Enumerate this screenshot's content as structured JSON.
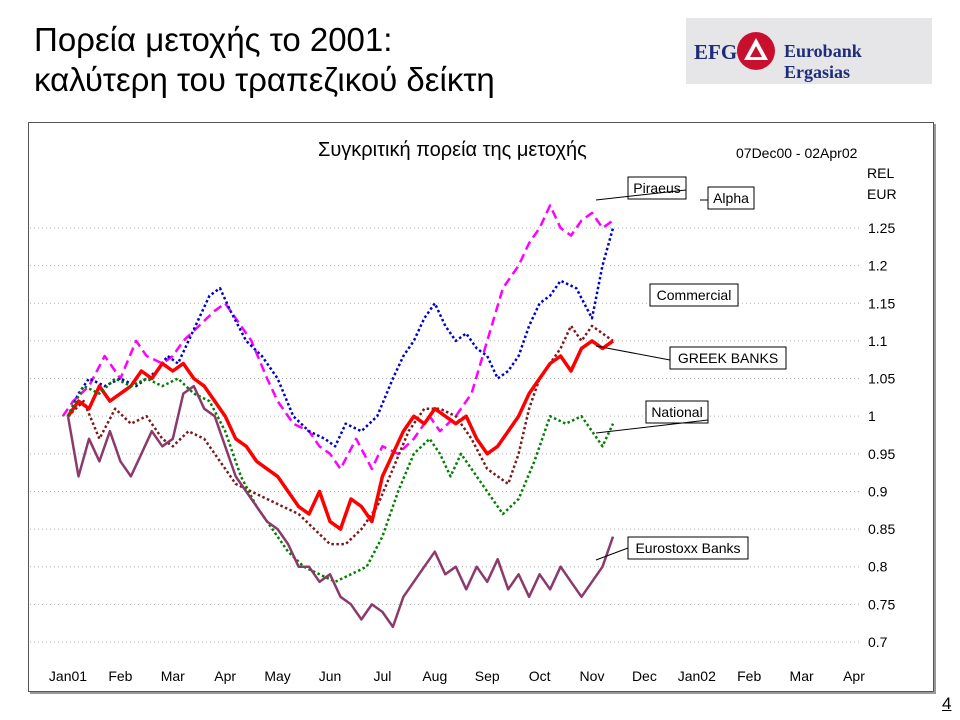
{
  "slide": {
    "title_line1": "Πορεία μετοχής το 2001:",
    "title_line2": "καλύτερη του τραπεζικού δείκτη",
    "logo_left": "EFG",
    "logo_right": "Eurobank Ergasias",
    "page_number": "4"
  },
  "chart_data": {
    "type": "line",
    "title": "Συγκριτική πορεία της μετοχής",
    "date_range": "07Dec00 - 02Apr02",
    "ylabel_line1": "REL",
    "ylabel_line2": "EUR",
    "ylim": [
      0.7,
      1.3
    ],
    "yticks": [
      "1.25",
      "1.2",
      "1.15",
      "1.1",
      "1.05",
      "1",
      "0.95",
      "0.9",
      "0.85",
      "0.8",
      "0.75",
      "0.7"
    ],
    "ytick_values": [
      1.25,
      1.2,
      1.15,
      1.1,
      1.05,
      1,
      0.95,
      0.9,
      0.85,
      0.8,
      0.75,
      0.7
    ],
    "xticks": [
      "Jan01",
      "Feb",
      "Mar",
      "Apr",
      "May",
      "Jun",
      "Jul",
      "Aug",
      "Sep",
      "Oct",
      "Nov",
      "Dec",
      "Jan02",
      "Feb",
      "Mar",
      "Apr"
    ],
    "xtick_months": [
      0,
      1,
      2,
      3,
      4,
      5,
      6,
      7,
      8,
      9,
      10,
      11,
      12,
      13,
      14,
      15
    ],
    "x_units": "months since Jan01",
    "legend_position": "labels at right end of lines",
    "grid": "dotted horizontal",
    "series": [
      {
        "name": "Piraeus",
        "color": "#ff00ff",
        "style": "dashed",
        "width": 2.5,
        "x": [
          -0.1,
          0.1,
          0.4,
          0.7,
          1.0,
          1.3,
          1.5,
          1.8,
          2.0,
          2.2,
          2.5,
          2.8,
          3.0,
          3.2,
          3.5,
          3.8,
          4.0,
          4.3,
          4.6,
          4.8,
          5.0,
          5.2,
          5.5,
          5.8,
          6.0,
          6.3,
          6.6,
          6.9,
          7.1,
          7.4,
          7.7,
          8.0,
          8.3,
          8.6,
          8.8,
          9.0,
          9.2,
          9.4,
          9.6,
          9.8,
          10.0,
          10.2,
          10.4
        ],
        "y": [
          1.0,
          1.02,
          1.04,
          1.08,
          1.05,
          1.1,
          1.08,
          1.07,
          1.08,
          1.1,
          1.12,
          1.14,
          1.15,
          1.13,
          1.1,
          1.05,
          1.02,
          0.99,
          0.98,
          0.96,
          0.95,
          0.93,
          0.97,
          0.93,
          0.96,
          0.95,
          0.97,
          1.0,
          0.98,
          1.0,
          1.03,
          1.1,
          1.17,
          1.2,
          1.23,
          1.25,
          1.28,
          1.25,
          1.24,
          1.26,
          1.27,
          1.25,
          1.26
        ]
      },
      {
        "name": "Alpha",
        "color": "#0000cc",
        "style": "dotted",
        "width": 2.5,
        "x": [
          0.0,
          0.2,
          0.4,
          0.7,
          1.0,
          1.3,
          1.5,
          1.7,
          1.9,
          2.1,
          2.3,
          2.5,
          2.7,
          2.9,
          3.1,
          3.4,
          3.7,
          4.0,
          4.3,
          4.6,
          4.9,
          5.1,
          5.3,
          5.6,
          5.9,
          6.2,
          6.4,
          6.6,
          6.8,
          7.0,
          7.2,
          7.4,
          7.6,
          7.8,
          8.0,
          8.2,
          8.4,
          8.6,
          8.8,
          9.0,
          9.2,
          9.4,
          9.7,
          10.0,
          10.2,
          10.4
        ],
        "y": [
          1.0,
          1.03,
          1.05,
          1.04,
          1.05,
          1.04,
          1.05,
          1.06,
          1.08,
          1.07,
          1.1,
          1.13,
          1.16,
          1.17,
          1.14,
          1.1,
          1.08,
          1.05,
          1.0,
          0.98,
          0.97,
          0.96,
          0.99,
          0.98,
          1.0,
          1.05,
          1.08,
          1.1,
          1.13,
          1.15,
          1.12,
          1.1,
          1.11,
          1.09,
          1.08,
          1.05,
          1.06,
          1.08,
          1.12,
          1.15,
          1.16,
          1.18,
          1.17,
          1.13,
          1.2,
          1.25
        ]
      },
      {
        "name": "Commercial",
        "color": "#7a1a1a",
        "style": "dotted",
        "width": 2.5,
        "x": [
          0.0,
          0.3,
          0.6,
          0.9,
          1.2,
          1.5,
          1.8,
          2.0,
          2.3,
          2.6,
          2.9,
          3.2,
          3.5,
          3.8,
          4.1,
          4.4,
          4.7,
          5.0,
          5.3,
          5.6,
          5.9,
          6.2,
          6.5,
          6.8,
          7.1,
          7.4,
          7.7,
          8.0,
          8.2,
          8.4,
          8.6,
          8.8,
          9.0,
          9.2,
          9.4,
          9.6,
          9.8,
          10.0,
          10.2,
          10.4
        ],
        "y": [
          1.0,
          1.02,
          0.97,
          1.01,
          0.99,
          1.0,
          0.97,
          0.96,
          0.98,
          0.97,
          0.94,
          0.91,
          0.9,
          0.89,
          0.88,
          0.87,
          0.85,
          0.83,
          0.83,
          0.85,
          0.88,
          0.93,
          0.98,
          1.01,
          1.01,
          1.0,
          0.97,
          0.93,
          0.92,
          0.91,
          0.95,
          1.01,
          1.05,
          1.07,
          1.09,
          1.12,
          1.1,
          1.12,
          1.11,
          1.1
        ]
      },
      {
        "name": "GREEK BANKS",
        "color": "#ff0000",
        "style": "solid",
        "width": 3.5,
        "x": [
          0.0,
          0.2,
          0.4,
          0.6,
          0.8,
          1.0,
          1.2,
          1.4,
          1.6,
          1.8,
          2.0,
          2.2,
          2.4,
          2.6,
          2.8,
          3.0,
          3.2,
          3.4,
          3.6,
          3.8,
          4.0,
          4.2,
          4.4,
          4.6,
          4.8,
          5.0,
          5.2,
          5.4,
          5.6,
          5.8,
          6.0,
          6.2,
          6.4,
          6.6,
          6.8,
          7.0,
          7.2,
          7.4,
          7.6,
          7.8,
          8.0,
          8.2,
          8.4,
          8.6,
          8.8,
          9.0,
          9.2,
          9.4,
          9.6,
          9.8,
          10.0,
          10.2,
          10.4
        ],
        "y": [
          1.0,
          1.02,
          1.01,
          1.04,
          1.02,
          1.03,
          1.04,
          1.06,
          1.05,
          1.07,
          1.06,
          1.07,
          1.05,
          1.04,
          1.02,
          1.0,
          0.97,
          0.96,
          0.94,
          0.93,
          0.92,
          0.9,
          0.88,
          0.87,
          0.9,
          0.86,
          0.85,
          0.89,
          0.88,
          0.86,
          0.92,
          0.95,
          0.98,
          1.0,
          0.99,
          1.01,
          1.0,
          0.99,
          1.0,
          0.97,
          0.95,
          0.96,
          0.98,
          1.0,
          1.03,
          1.05,
          1.07,
          1.08,
          1.06,
          1.09,
          1.1,
          1.09,
          1.1
        ]
      },
      {
        "name": "National",
        "color": "#008000",
        "style": "dotted",
        "width": 2.5,
        "x": [
          0.0,
          0.3,
          0.6,
          0.9,
          1.2,
          1.5,
          1.8,
          2.1,
          2.4,
          2.7,
          3.0,
          3.3,
          3.6,
          3.9,
          4.2,
          4.5,
          4.8,
          5.1,
          5.4,
          5.7,
          6.0,
          6.3,
          6.6,
          6.9,
          7.1,
          7.3,
          7.5,
          7.7,
          8.0,
          8.3,
          8.6,
          8.9,
          9.2,
          9.5,
          9.8,
          10.0,
          10.2,
          10.4
        ],
        "y": [
          1.0,
          1.04,
          1.03,
          1.05,
          1.04,
          1.05,
          1.04,
          1.05,
          1.03,
          1.02,
          0.98,
          0.92,
          0.88,
          0.85,
          0.82,
          0.8,
          0.79,
          0.78,
          0.79,
          0.8,
          0.84,
          0.9,
          0.95,
          0.97,
          0.95,
          0.92,
          0.95,
          0.93,
          0.9,
          0.87,
          0.89,
          0.94,
          1.0,
          0.99,
          1.0,
          0.98,
          0.96,
          0.99
        ]
      },
      {
        "name": "Eurostoxx Banks",
        "color": "#8b3a6b",
        "style": "solid",
        "width": 2.5,
        "x": [
          0.0,
          0.2,
          0.4,
          0.6,
          0.8,
          1.0,
          1.2,
          1.4,
          1.6,
          1.8,
          2.0,
          2.2,
          2.4,
          2.6,
          2.8,
          3.0,
          3.2,
          3.4,
          3.6,
          3.8,
          4.0,
          4.2,
          4.4,
          4.6,
          4.8,
          5.0,
          5.2,
          5.4,
          5.6,
          5.8,
          6.0,
          6.2,
          6.4,
          6.6,
          6.8,
          7.0,
          7.2,
          7.4,
          7.6,
          7.8,
          8.0,
          8.2,
          8.4,
          8.6,
          8.8,
          9.0,
          9.2,
          9.4,
          9.6,
          9.8,
          10.0,
          10.2,
          10.4
        ],
        "y": [
          1.0,
          0.92,
          0.97,
          0.94,
          0.98,
          0.94,
          0.92,
          0.95,
          0.98,
          0.96,
          0.97,
          1.03,
          1.04,
          1.01,
          1.0,
          0.96,
          0.92,
          0.9,
          0.88,
          0.86,
          0.85,
          0.83,
          0.8,
          0.8,
          0.78,
          0.79,
          0.76,
          0.75,
          0.73,
          0.75,
          0.74,
          0.72,
          0.76,
          0.78,
          0.8,
          0.82,
          0.79,
          0.8,
          0.77,
          0.8,
          0.78,
          0.81,
          0.77,
          0.79,
          0.76,
          0.79,
          0.77,
          0.8,
          0.78,
          0.76,
          0.78,
          0.8,
          0.84
        ]
      }
    ]
  }
}
